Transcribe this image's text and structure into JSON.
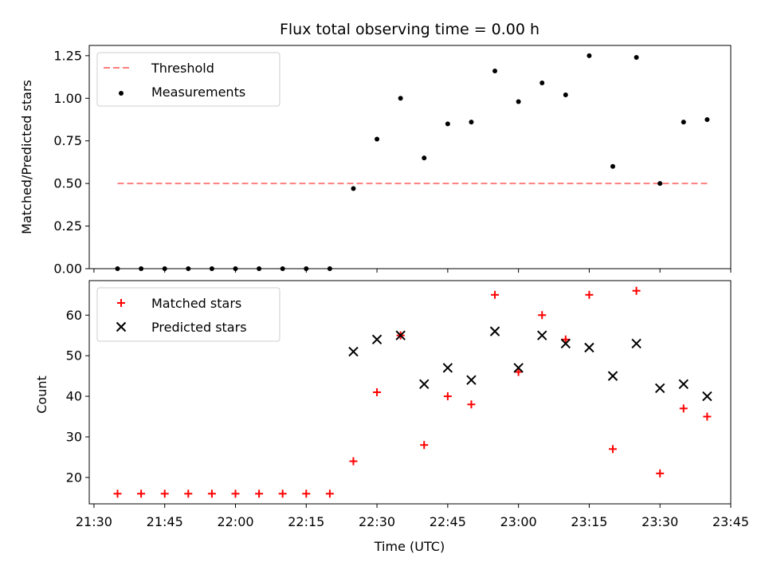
{
  "chart_data": [
    {
      "type": "scatter",
      "title": "Flux total observing time = 0.00 h",
      "xlabel": "",
      "ylabel": "Matched/Predicted stars",
      "ylim": [
        0,
        1.31
      ],
      "xlim": [
        "21:29",
        "23:45"
      ],
      "y_ticks": [
        "0.00",
        "0.25",
        "0.50",
        "0.75",
        "1.00",
        "1.25"
      ],
      "legend_position": "top-left",
      "grid": false,
      "threshold": {
        "name": "Threshold",
        "value": 0.5,
        "x_start": "21:35",
        "x_end": "23:40",
        "color": "#ff7f7f",
        "style": "dashed"
      },
      "series": [
        {
          "name": "Measurements",
          "color": "#000000",
          "marker": "dot",
          "x": [
            "21:35",
            "21:40",
            "21:45",
            "21:50",
            "21:55",
            "22:00",
            "22:05",
            "22:10",
            "22:15",
            "22:20",
            "22:25",
            "22:30",
            "22:35",
            "22:40",
            "22:45",
            "22:50",
            "22:55",
            "23:00",
            "23:05",
            "23:10",
            "23:15",
            "23:20",
            "23:25",
            "23:30",
            "23:35",
            "23:40"
          ],
          "y": [
            0,
            0,
            0,
            0,
            0,
            0,
            0,
            0,
            0,
            0,
            0.47,
            0.76,
            1.0,
            0.65,
            0.85,
            0.86,
            1.16,
            0.98,
            1.09,
            1.02,
            1.25,
            0.6,
            1.24,
            0.5,
            0.86,
            0.875
          ]
        }
      ]
    },
    {
      "type": "scatter",
      "title": "",
      "xlabel": "Time (UTC)",
      "ylabel": "Count",
      "ylim": [
        13.5,
        68.5
      ],
      "xlim": [
        "21:29",
        "23:45"
      ],
      "y_ticks": [
        "20",
        "30",
        "40",
        "50",
        "60"
      ],
      "x_ticks": [
        "21:30",
        "21:45",
        "22:00",
        "22:15",
        "22:30",
        "22:45",
        "23:00",
        "23:15",
        "23:30",
        "23:45"
      ],
      "legend_position": "top-left",
      "grid": false,
      "series": [
        {
          "name": "Matched stars",
          "color": "#ff0000",
          "marker": "plus",
          "x": [
            "21:35",
            "21:40",
            "21:45",
            "21:50",
            "21:55",
            "22:00",
            "22:05",
            "22:10",
            "22:15",
            "22:20",
            "22:25",
            "22:30",
            "22:35",
            "22:40",
            "22:45",
            "22:50",
            "22:55",
            "23:00",
            "23:05",
            "23:10",
            "23:15",
            "23:20",
            "23:25",
            "23:30",
            "23:35",
            "23:40"
          ],
          "y": [
            16,
            16,
            16,
            16,
            16,
            16,
            16,
            16,
            16,
            16,
            24,
            41,
            55,
            28,
            40,
            38,
            65,
            46,
            60,
            54,
            65,
            27,
            66,
            21,
            37,
            35
          ]
        },
        {
          "name": "Predicted stars",
          "color": "#000000",
          "marker": "x",
          "x": [
            "22:25",
            "22:30",
            "22:35",
            "22:40",
            "22:45",
            "22:50",
            "22:55",
            "23:00",
            "23:05",
            "23:10",
            "23:15",
            "23:20",
            "23:25",
            "23:30",
            "23:35",
            "23:40"
          ],
          "y": [
            51,
            54,
            55,
            43,
            47,
            44,
            56,
            47,
            55,
            53,
            52,
            45,
            53,
            42,
            43,
            40
          ]
        }
      ]
    }
  ]
}
